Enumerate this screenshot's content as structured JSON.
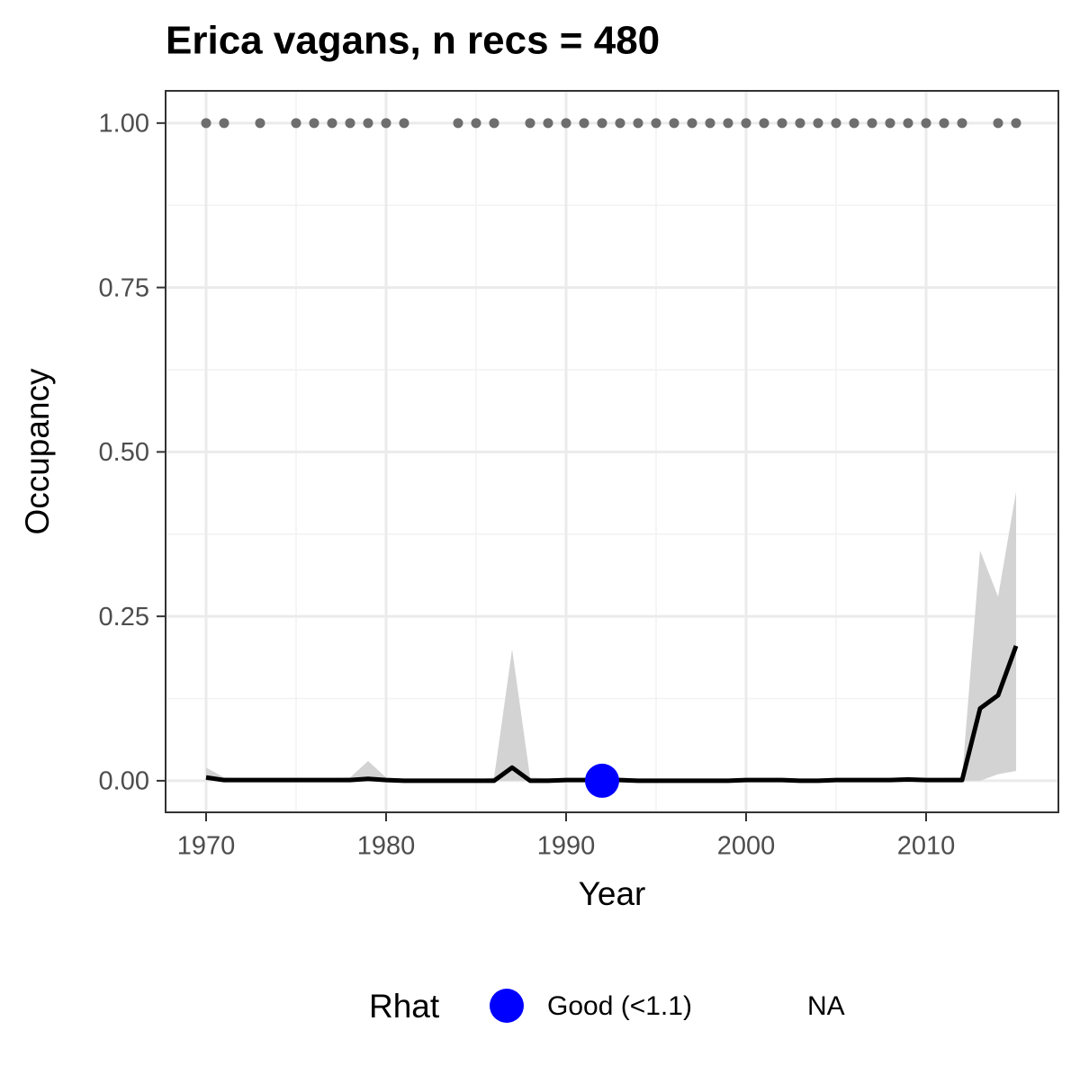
{
  "chart_data": {
    "type": "line",
    "title": "Erica vagans, n recs = 480",
    "x_label": "Year",
    "y_label": "Occupancy",
    "x": [
      1970,
      1971,
      1972,
      1973,
      1974,
      1975,
      1976,
      1977,
      1978,
      1979,
      1980,
      1981,
      1982,
      1983,
      1984,
      1985,
      1986,
      1987,
      1988,
      1989,
      1990,
      1991,
      1992,
      1993,
      1994,
      1995,
      1996,
      1997,
      1998,
      1999,
      2000,
      2001,
      2002,
      2003,
      2004,
      2005,
      2006,
      2007,
      2008,
      2009,
      2010,
      2011,
      2012,
      2013,
      2014,
      2015
    ],
    "values": [
      0.005,
      0.001,
      0.001,
      0.001,
      0.001,
      0.001,
      0.001,
      0.001,
      0.001,
      0.003,
      0.001,
      0,
      0,
      0,
      0,
      0,
      0,
      0.02,
      0,
      0,
      0.001,
      0.001,
      0.001,
      0.001,
      0,
      0,
      0,
      0,
      0,
      0,
      0.001,
      0.001,
      0.001,
      0,
      0,
      0.001,
      0.001,
      0.001,
      0.001,
      0.002,
      0.001,
      0.001,
      0.001,
      0.11,
      0.13,
      0.205
    ],
    "upper": [
      0.02,
      0.005,
      0.004,
      0.004,
      0.004,
      0.004,
      0.004,
      0.004,
      0.005,
      0.03,
      0.005,
      0.002,
      0.002,
      0.002,
      0.002,
      0.002,
      0.005,
      0.2,
      0.005,
      0.004,
      0.004,
      0.004,
      0.004,
      0.004,
      0.003,
      0.003,
      0.003,
      0.003,
      0.003,
      0.003,
      0.004,
      0.004,
      0.004,
      0.003,
      0.003,
      0.004,
      0.004,
      0.004,
      0.004,
      0.006,
      0.004,
      0.004,
      0.005,
      0.35,
      0.28,
      0.44
    ],
    "lower": [
      0,
      0,
      0,
      0,
      0,
      0,
      0,
      0,
      0,
      0,
      0,
      0,
      0,
      0,
      0,
      0,
      0,
      0,
      0,
      0,
      0,
      0,
      0,
      0,
      0,
      0,
      0,
      0,
      0,
      0,
      0,
      0,
      0,
      0,
      0,
      0,
      0,
      0,
      0,
      0,
      0,
      0,
      0,
      0.0,
      0.01,
      0.015
    ],
    "band_color": "#d3d3d3",
    "line_color": "#000000",
    "record_years": [
      1970,
      1971,
      1973,
      1975,
      1976,
      1977,
      1978,
      1979,
      1980,
      1981,
      1984,
      1985,
      1986,
      1988,
      1989,
      1990,
      1991,
      1992,
      1993,
      1994,
      1995,
      1996,
      1997,
      1998,
      1999,
      2000,
      2001,
      2002,
      2003,
      2004,
      2005,
      2006,
      2007,
      2008,
      2009,
      2010,
      2011,
      2012,
      2014,
      2015
    ],
    "record_values": [
      1,
      1,
      1,
      1,
      1,
      1,
      1,
      1,
      1,
      1,
      1,
      1,
      1,
      1,
      1,
      1,
      1,
      1,
      1,
      1,
      1,
      1,
      1,
      1,
      1,
      1,
      1,
      1,
      1,
      1,
      1,
      1,
      1,
      1,
      1,
      1,
      1,
      1,
      1,
      1
    ],
    "record_color": "#6e6e6e",
    "rhat_x": [
      1992
    ],
    "rhat_values": [
      0
    ],
    "rhat_color": "#0000ff",
    "legend_title": "Rhat",
    "legend_labels": [
      "Good (<1.1)",
      "NA"
    ],
    "xlim": [
      1967.75,
      2017.35
    ],
    "ylim": [
      -0.048,
      1.049
    ],
    "xticks": [
      1970,
      1980,
      1990,
      2000,
      2010
    ],
    "yticks": [
      {
        "value": 0,
        "label": "0.00"
      },
      {
        "value": 0.25,
        "label": "0.25"
      },
      {
        "value": 0.5,
        "label": "0.50"
      },
      {
        "value": 0.75,
        "label": "0.75"
      },
      {
        "value": 1,
        "label": "1.00"
      }
    ],
    "grid": true
  }
}
